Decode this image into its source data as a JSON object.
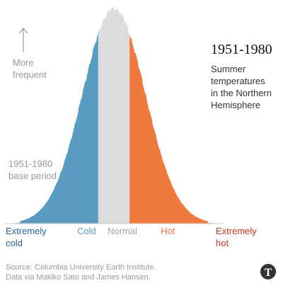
{
  "chart_data": {
    "type": "area",
    "title": "1951-1980",
    "subtitle_lines": [
      "Summer",
      "temperatures",
      "in the Northern",
      "Hemisphere"
    ],
    "frequency_label_lines": [
      "More",
      "frequent"
    ],
    "period_label_lines": [
      "1951-1980",
      "base period"
    ],
    "categories": [
      {
        "key": "extremely_cold",
        "lines": [
          "Extremely",
          "cold"
        ],
        "color": "#1f6796"
      },
      {
        "key": "cold",
        "lines": [
          "Cold"
        ],
        "color": "#5a9ac4"
      },
      {
        "key": "normal",
        "lines": [
          "Normal"
        ],
        "color": "#a3a3a3"
      },
      {
        "key": "hot",
        "lines": [
          "Hot"
        ],
        "color": "#f0753e"
      },
      {
        "key": "extremely_hot",
        "lines": [
          "Extremely",
          "hot"
        ],
        "color": "#c8361e"
      }
    ],
    "bands": [
      {
        "name": "cold",
        "from": -3.0,
        "to": -0.5,
        "color": "#5a9bc2"
      },
      {
        "name": "normal",
        "from": -0.5,
        "to": 0.5,
        "color": "#dcdcdc"
      },
      {
        "name": "hot",
        "from": 0.5,
        "to": 3.0,
        "color": "#ef7a3e"
      }
    ],
    "distribution": "normal",
    "mean": 0,
    "sd": 1,
    "xlim": [
      -3.5,
      3.5
    ],
    "source_lines": [
      "Source: Columbia University Earth Institute.",
      "Data via Makiko Sato and James Hansen."
    ],
    "colors": {
      "text": "#333333",
      "muted": "#999999",
      "axis": "#cccccc"
    }
  }
}
